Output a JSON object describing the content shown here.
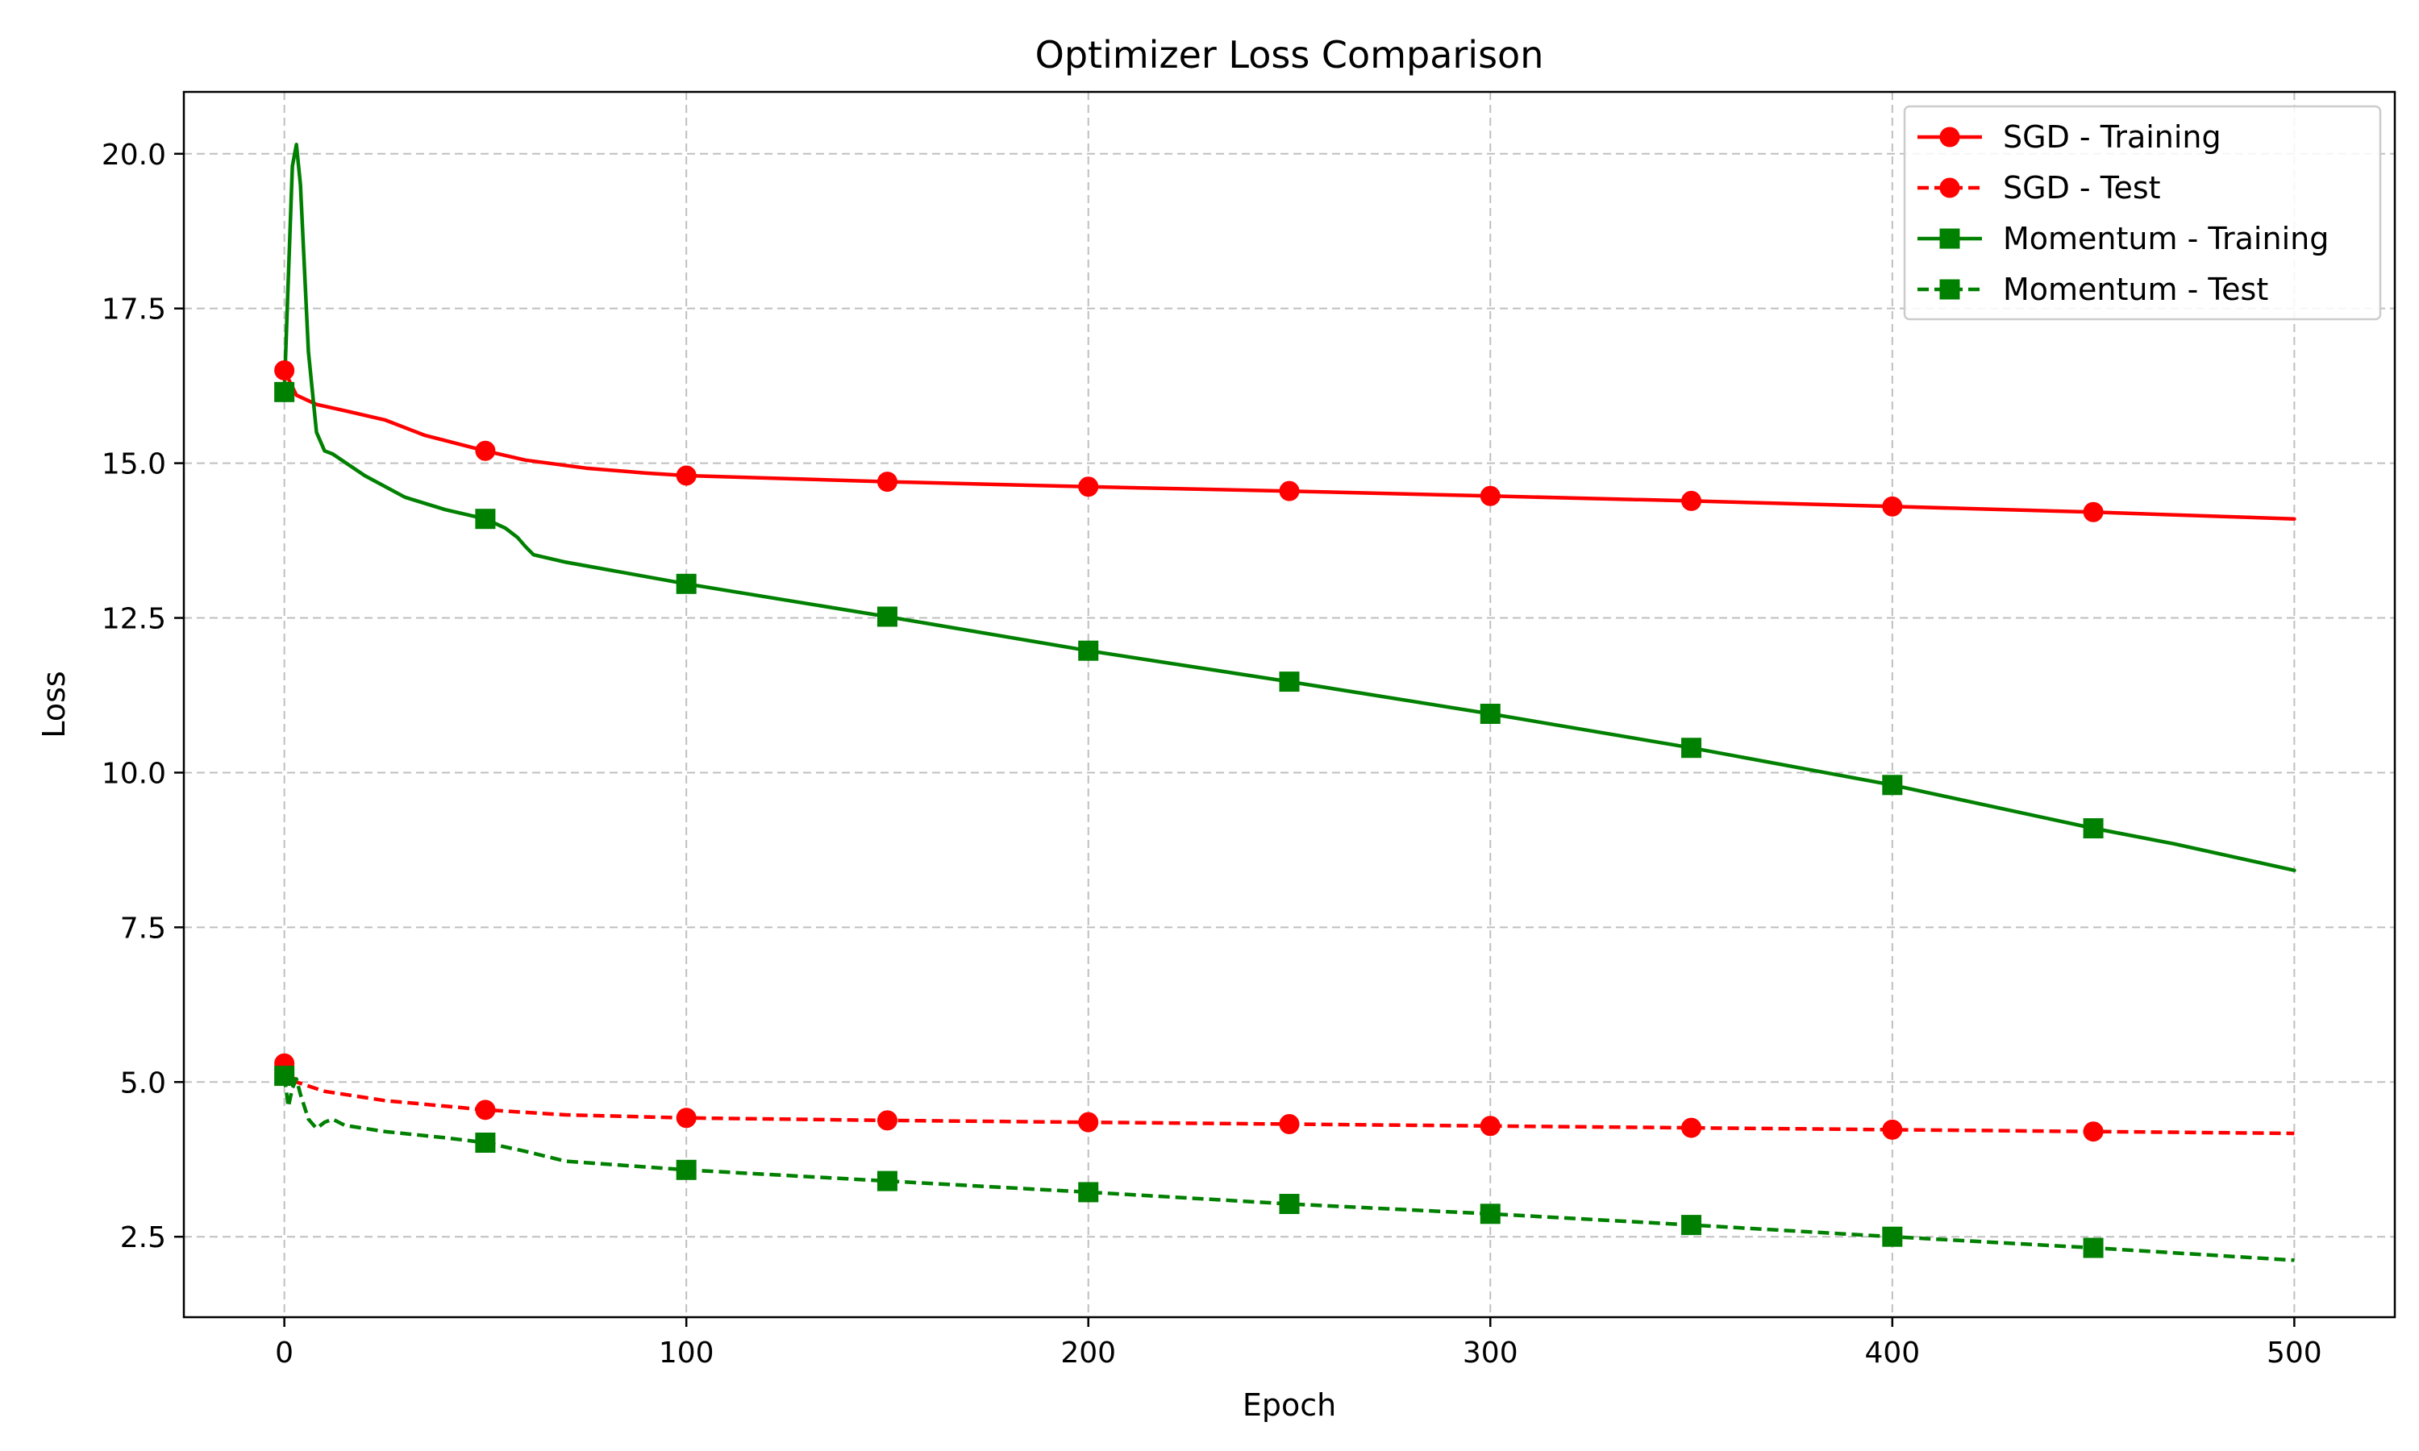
{
  "chart_data": {
    "type": "line",
    "title": "Optimizer Loss Comparison",
    "xlabel": "Epoch",
    "ylabel": "Loss",
    "xlim": [
      -25,
      525
    ],
    "ylim": [
      1.2,
      21.0
    ],
    "xticks": [
      0,
      100,
      200,
      300,
      400,
      500
    ],
    "xtick_labels": [
      "0",
      "100",
      "200",
      "300",
      "400",
      "500"
    ],
    "yticks": [
      2.5,
      5.0,
      7.5,
      10.0,
      12.5,
      15.0,
      17.5,
      20.0
    ],
    "ytick_labels": [
      "2.5",
      "5.0",
      "7.5",
      "10.0",
      "12.5",
      "15.0",
      "17.5",
      "20.0"
    ],
    "grid": true,
    "legend_position": "top-right",
    "series": [
      {
        "name": "SGD - Training",
        "color": "#ff0000",
        "linestyle": "solid",
        "marker": "circle",
        "x": [
          0,
          3,
          8,
          15,
          25,
          35,
          50,
          60,
          75,
          90,
          100,
          150,
          200,
          250,
          300,
          350,
          400,
          450,
          500
        ],
        "y": [
          16.5,
          16.1,
          15.95,
          15.85,
          15.7,
          15.45,
          15.2,
          15.05,
          14.92,
          14.84,
          14.8,
          14.7,
          14.62,
          14.55,
          14.47,
          14.39,
          14.3,
          14.21,
          14.1
        ],
        "marker_x": [
          0,
          50,
          100,
          150,
          200,
          250,
          300,
          350,
          400,
          450
        ],
        "marker_y": [
          16.5,
          15.2,
          14.8,
          14.7,
          14.62,
          14.55,
          14.47,
          14.39,
          14.3,
          14.21
        ]
      },
      {
        "name": "SGD - Test",
        "color": "#ff0000",
        "linestyle": "dashed",
        "marker": "circle",
        "x": [
          0,
          3,
          10,
          25,
          50,
          70,
          100,
          150,
          200,
          250,
          300,
          350,
          400,
          450,
          500
        ],
        "y": [
          5.3,
          5.0,
          4.85,
          4.7,
          4.55,
          4.47,
          4.42,
          4.38,
          4.35,
          4.32,
          4.29,
          4.26,
          4.23,
          4.2,
          4.17
        ],
        "marker_x": [
          0,
          50,
          100,
          150,
          200,
          250,
          300,
          350,
          400,
          450
        ],
        "marker_y": [
          5.3,
          4.55,
          4.42,
          4.38,
          4.35,
          4.32,
          4.29,
          4.26,
          4.23,
          4.2
        ]
      },
      {
        "name": "Momentum - Training",
        "color": "#008000",
        "linestyle": "solid",
        "marker": "square",
        "x": [
          0,
          1,
          2,
          3,
          4,
          6,
          8,
          10,
          12,
          20,
          30,
          40,
          50,
          55,
          58,
          60,
          62,
          70,
          100,
          150,
          200,
          250,
          300,
          350,
          400,
          450,
          470,
          500
        ],
        "y": [
          16.15,
          18.0,
          19.8,
          20.15,
          19.5,
          16.8,
          15.5,
          15.2,
          15.15,
          14.8,
          14.45,
          14.25,
          14.1,
          13.95,
          13.8,
          13.65,
          13.52,
          13.4,
          13.05,
          12.52,
          11.97,
          11.47,
          10.95,
          10.4,
          9.8,
          9.1,
          8.85,
          8.42
        ],
        "marker_x": [
          0,
          50,
          100,
          150,
          200,
          250,
          300,
          350,
          400,
          450
        ],
        "marker_y": [
          16.15,
          14.1,
          13.05,
          12.52,
          11.97,
          11.47,
          10.95,
          10.4,
          9.8,
          9.1
        ]
      },
      {
        "name": "Momentum - Test",
        "color": "#008000",
        "linestyle": "dashed",
        "marker": "square",
        "x": [
          0,
          1,
          2,
          3,
          4,
          6,
          8,
          10,
          12,
          15,
          25,
          40,
          50,
          60,
          70,
          100,
          150,
          200,
          250,
          300,
          350,
          400,
          450,
          500
        ],
        "y": [
          5.1,
          4.6,
          4.9,
          5.05,
          4.8,
          4.4,
          4.25,
          4.35,
          4.4,
          4.3,
          4.2,
          4.1,
          4.02,
          3.88,
          3.72,
          3.58,
          3.4,
          3.22,
          3.03,
          2.87,
          2.69,
          2.5,
          2.32,
          2.12
        ],
        "marker_x": [
          0,
          50,
          100,
          150,
          200,
          250,
          300,
          350,
          400,
          450
        ],
        "marker_y": [
          5.1,
          4.02,
          3.58,
          3.4,
          3.22,
          3.03,
          2.87,
          2.69,
          2.5,
          2.32
        ]
      }
    ]
  }
}
